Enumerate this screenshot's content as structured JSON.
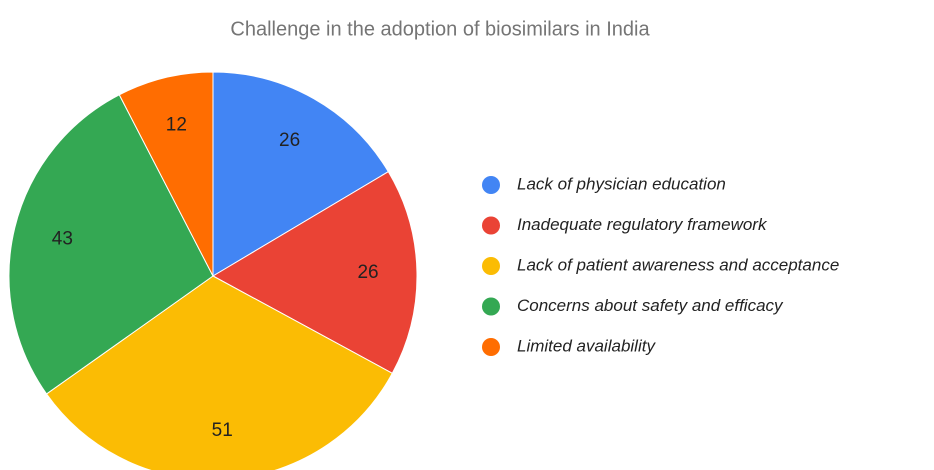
{
  "chart_data": {
    "type": "pie",
    "title": "Challenge in the adoption of biosimilars in India",
    "categories": [
      "Lack of physician education",
      "Inadequate regulatory framework",
      "Lack of patient awareness and acceptance",
      "Concerns about safety and efficacy",
      "Limited availability"
    ],
    "values": [
      26,
      26,
      51,
      43,
      12
    ],
    "colors": [
      "#4285f4",
      "#ea4335",
      "#fbbc04",
      "#34a853",
      "#ff6d01"
    ],
    "legend": "right"
  }
}
